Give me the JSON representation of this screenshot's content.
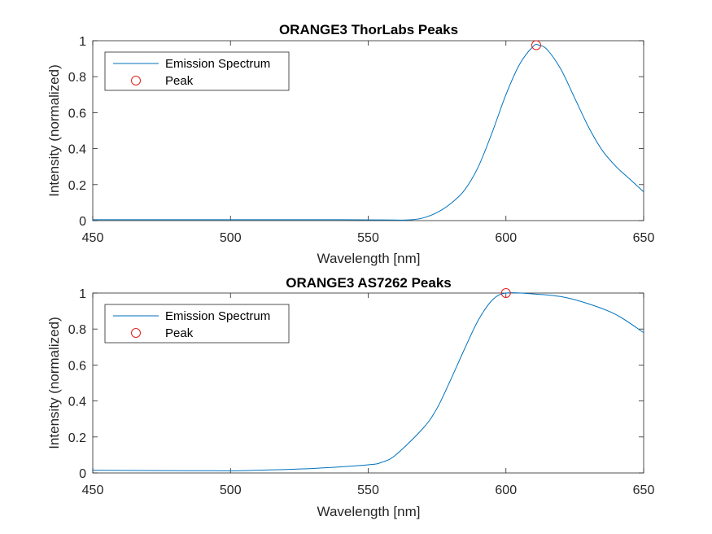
{
  "colors": {
    "series": "#0072BD",
    "peak": "#E02020",
    "axis": "#262626",
    "background": "#ffffff"
  },
  "legend_labels": {
    "series": "Emission Spectrum",
    "peak": "Peak"
  },
  "chart_data": [
    {
      "type": "line",
      "title": "ORANGE3 ThorLabs Peaks",
      "xlabel": "Wavelength [nm]",
      "ylabel": "Intensity (normalized)",
      "xlim": [
        450,
        650
      ],
      "ylim": [
        0,
        1
      ],
      "xticks": [
        "450",
        "500",
        "550",
        "600",
        "650"
      ],
      "yticks": [
        "0",
        "0.2",
        "0.4",
        "0.6",
        "0.8",
        "1"
      ],
      "legend_position": "top-left",
      "series": [
        {
          "name": "Emission Spectrum",
          "x": [
            450,
            500,
            540,
            555,
            562,
            566,
            570,
            575,
            580,
            585,
            590,
            595,
            600,
            605,
            610,
            612,
            615,
            620,
            625,
            630,
            635,
            640,
            645,
            650
          ],
          "y": [
            0.005,
            0.005,
            0.005,
            0.004,
            0.003,
            0.005,
            0.015,
            0.045,
            0.095,
            0.17,
            0.3,
            0.49,
            0.7,
            0.87,
            0.97,
            0.975,
            0.95,
            0.84,
            0.68,
            0.52,
            0.39,
            0.3,
            0.23,
            0.16
          ]
        }
      ],
      "peak": {
        "name": "Peak",
        "x": [
          611
        ],
        "y": [
          0.975
        ]
      }
    },
    {
      "type": "line",
      "title": "ORANGE3 AS7262 Peaks",
      "xlabel": "Wavelength [nm]",
      "ylabel": "Intensity (normalized)",
      "xlim": [
        450,
        650
      ],
      "ylim": [
        0,
        1
      ],
      "xticks": [
        "450",
        "500",
        "550",
        "600",
        "650"
      ],
      "yticks": [
        "0",
        "0.2",
        "0.4",
        "0.6",
        "0.8",
        "1"
      ],
      "legend_position": "top-left",
      "series": [
        {
          "name": "Emission Spectrum",
          "x": [
            450,
            475,
            500,
            510,
            530,
            550,
            555,
            560,
            570,
            575,
            580,
            585,
            590,
            595,
            600,
            610,
            620,
            630,
            640,
            650
          ],
          "y": [
            0.015,
            0.013,
            0.012,
            0.015,
            0.025,
            0.045,
            0.06,
            0.1,
            0.25,
            0.36,
            0.52,
            0.69,
            0.85,
            0.96,
            1.0,
            0.995,
            0.98,
            0.94,
            0.88,
            0.78
          ]
        }
      ],
      "peak": {
        "name": "Peak",
        "x": [
          600
        ],
        "y": [
          1.0
        ]
      }
    }
  ]
}
